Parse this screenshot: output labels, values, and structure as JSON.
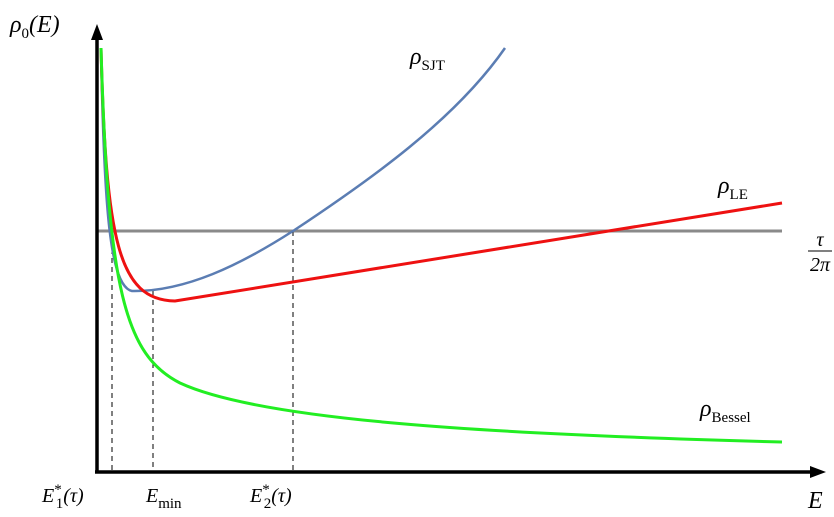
{
  "axes": {
    "y_label": {
      "base": "ρ",
      "sub": "0",
      "arg": "(E)"
    },
    "x_label": "E"
  },
  "curves": [
    {
      "base": "ρ",
      "sub": "SJT"
    },
    {
      "base": "ρ",
      "sub": "LE"
    },
    {
      "base": "ρ",
      "sub": "Bessel"
    }
  ],
  "level": {
    "num": "τ",
    "den": "2π"
  },
  "markers": [
    {
      "base": "E",
      "sup": "*",
      "sub": "1",
      "arg": "(τ)"
    },
    {
      "base": "E",
      "sub": "min"
    },
    {
      "base": "E",
      "sup": "*",
      "sub": "2",
      "arg": "(τ)"
    }
  ]
}
